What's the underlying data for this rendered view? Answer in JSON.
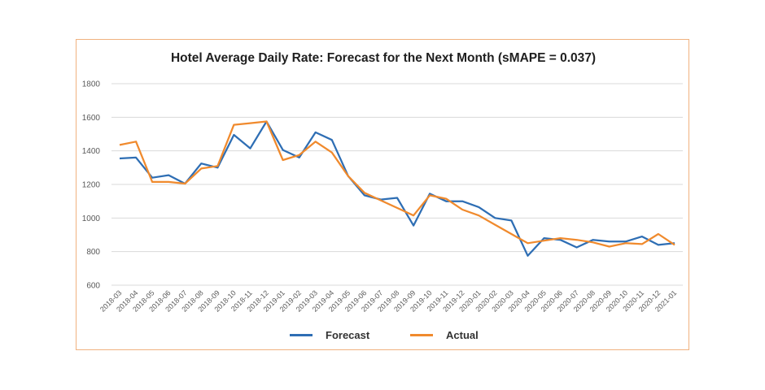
{
  "chart_data": {
    "type": "line",
    "title": "Hotel Average Daily Rate: Forecast for the Next Month (sMAPE = 0.037)",
    "xlabel": "",
    "ylabel": "",
    "ylim": [
      600,
      1800
    ],
    "yticks": [
      "600",
      "800",
      "1000",
      "1200",
      "1400",
      "1600",
      "1800"
    ],
    "grid": "horizontal",
    "legend_position": "bottom",
    "categories": [
      "2018-03",
      "2018-04",
      "2018-05",
      "2018-06",
      "2018-07",
      "2018-08",
      "2018-09",
      "2018-10",
      "2018-11",
      "2018-12",
      "2019-01",
      "2019-02",
      "2019-03",
      "2019-04",
      "2019-05",
      "2019-06",
      "2019-07",
      "2019-08",
      "2019-09",
      "2019-10",
      "2019-11",
      "2019-12",
      "2020-01",
      "2020-02",
      "2020-03",
      "2020-04",
      "2020-05",
      "2020-06",
      "2020-07",
      "2020-08",
      "2020-09",
      "2020-10",
      "2020-11",
      "2020-12",
      "2021-01"
    ],
    "series": [
      {
        "name": "Forecast",
        "color": "#2e6eb4",
        "values": [
          1355,
          1360,
          1240,
          1255,
          1205,
          1325,
          1300,
          1495,
          1415,
          1575,
          1405,
          1360,
          1510,
          1465,
          1250,
          1135,
          1110,
          1120,
          955,
          1145,
          1100,
          1100,
          1065,
          1000,
          985,
          775,
          880,
          870,
          825,
          870,
          860,
          860,
          890,
          840,
          850
        ]
      },
      {
        "name": "Actual",
        "color": "#f08a2d",
        "values": [
          1435,
          1455,
          1215,
          1215,
          1205,
          1295,
          1310,
          1555,
          1565,
          1575,
          1345,
          1375,
          1455,
          1390,
          1250,
          1150,
          1105,
          1060,
          1015,
          1135,
          1115,
          1050,
          1015,
          960,
          905,
          850,
          865,
          880,
          870,
          855,
          830,
          850,
          845,
          905,
          840
        ]
      }
    ]
  }
}
